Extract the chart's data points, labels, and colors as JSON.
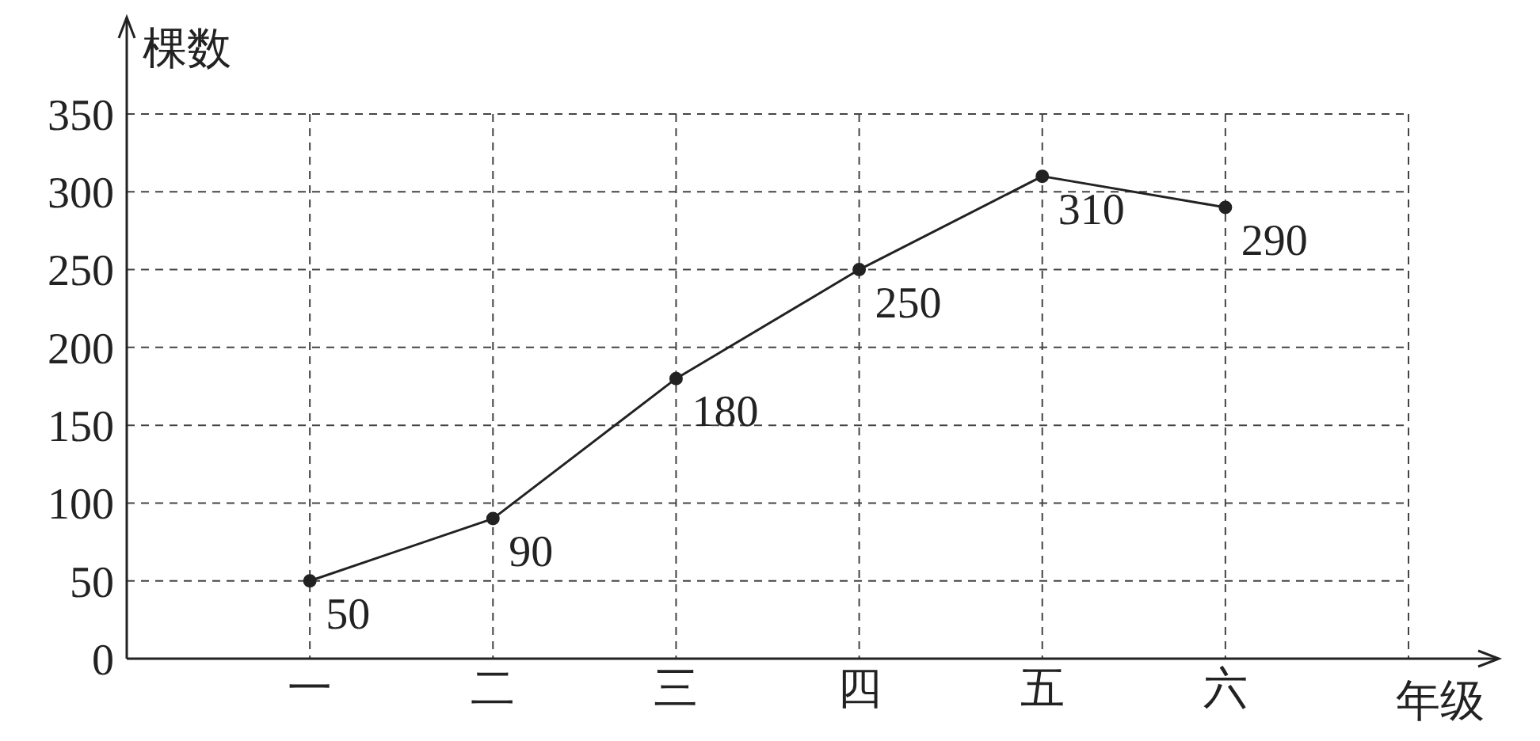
{
  "chart_data": {
    "type": "line",
    "xlabel": "年级",
    "ylabel": "棵数",
    "categories": [
      "一",
      "二",
      "三",
      "四",
      "五",
      "六"
    ],
    "values": [
      50,
      90,
      180,
      250,
      310,
      290
    ],
    "color": "#222222",
    "ylim": [
      0,
      350
    ],
    "yticks": [
      0,
      50,
      100,
      150,
      200,
      250,
      300,
      350
    ],
    "grid": true,
    "marker": "circle",
    "line_style": "solid",
    "data_labels": true
  }
}
